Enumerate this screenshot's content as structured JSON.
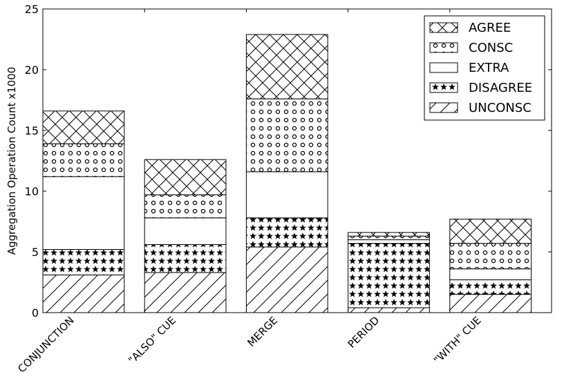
{
  "chart_data": {
    "type": "bar",
    "stacked": true,
    "title": "",
    "xlabel": "",
    "ylabel": "Aggregation Operation Count x1000",
    "ylim": [
      0,
      25
    ],
    "yticks": [
      0,
      5,
      10,
      15,
      20,
      25
    ],
    "categories": [
      "CONJUNCTION",
      "\"ALSO\" CUE",
      "MERGE",
      "PERIOD",
      "\"WITH\" CUE"
    ],
    "grid": false,
    "legend_position": "top-right",
    "series": [
      {
        "name": "UNCONSC",
        "pattern": "diagonal-hatch",
        "values": [
          3.1,
          3.3,
          5.4,
          0.4,
          1.5
        ]
      },
      {
        "name": "DISAGREE",
        "pattern": "stars",
        "values": [
          2.1,
          2.3,
          2.4,
          5.3,
          1.2
        ]
      },
      {
        "name": "EXTRA",
        "pattern": "plain",
        "values": [
          6.0,
          2.2,
          3.8,
          0.3,
          0.9
        ]
      },
      {
        "name": "CONSC",
        "pattern": "small-circles",
        "values": [
          2.7,
          1.9,
          6.0,
          0.3,
          2.1
        ]
      },
      {
        "name": "AGREE",
        "pattern": "crosshatch",
        "values": [
          2.7,
          2.9,
          5.3,
          0.3,
          2.0
        ]
      }
    ],
    "legend_order": [
      "AGREE",
      "CONSC",
      "EXTRA",
      "DISAGREE",
      "UNCONSC"
    ],
    "colors": {
      "bar_fill": "#ffffff",
      "stroke": "#000000"
    }
  }
}
